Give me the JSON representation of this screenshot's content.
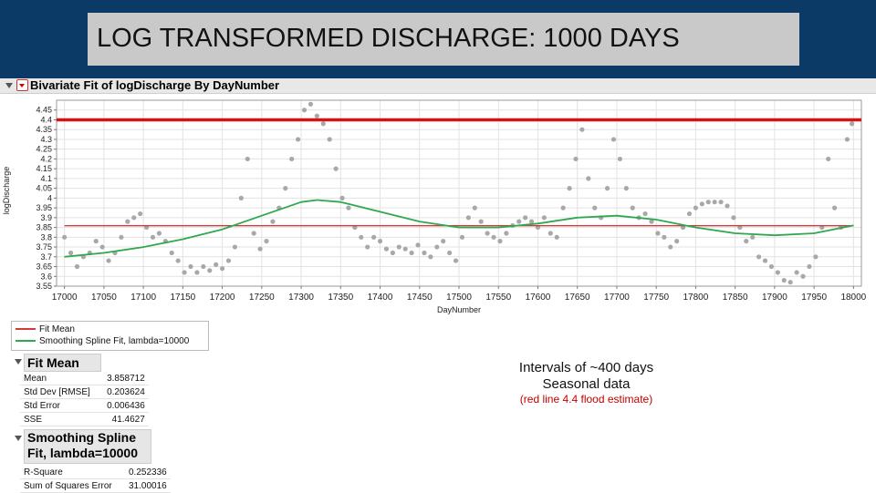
{
  "slide_title": "LOG TRANSFORMED DISCHARGE: 1000 DAYS",
  "report_title": "Bivariate Fit of logDischarge By DayNumber",
  "colors": {
    "title_band": "#0b3a66",
    "fit_mean": "#d33a3a",
    "spline": "#2fa84f",
    "flood_line": "#d41414",
    "points": "#a8a8a8",
    "annotation_red": "#c00000"
  },
  "icons": [
    "disclosure-triangle-icon",
    "red-triangle-menu-icon"
  ],
  "chart_data": {
    "type": "scatter",
    "xlabel": "DayNumber",
    "ylabel": "logDischarge",
    "xlim": [
      16990,
      18010
    ],
    "ylim": [
      3.55,
      4.5
    ],
    "x_ticks": [
      "17000",
      "17050",
      "17100",
      "17150",
      "17200",
      "17250",
      "17300",
      "17350",
      "17400",
      "17450",
      "17500",
      "17550",
      "17600",
      "17650",
      "17700",
      "17750",
      "17800",
      "17850",
      "17900",
      "17950",
      "18000"
    ],
    "y_ticks": [
      "3.55",
      "3.6",
      "3.65",
      "3.7",
      "3.75",
      "3.8",
      "3.85",
      "3.9",
      "3.95",
      "4",
      "4.05",
      "4.1",
      "4.15",
      "4.2",
      "4.25",
      "4.3",
      "4.35",
      "4.4",
      "4.45"
    ],
    "grid": true,
    "observations": {
      "x": [
        17000,
        17008,
        17016,
        17024,
        17032,
        17040,
        17048,
        17056,
        17064,
        17072,
        17080,
        17088,
        17096,
        17104,
        17112,
        17120,
        17128,
        17136,
        17144,
        17152,
        17160,
        17168,
        17176,
        17184,
        17192,
        17200,
        17208,
        17216,
        17224,
        17232,
        17240,
        17248,
        17256,
        17264,
        17272,
        17280,
        17288,
        17296,
        17304,
        17312,
        17320,
        17328,
        17336,
        17344,
        17352,
        17360,
        17368,
        17376,
        17384,
        17392,
        17400,
        17408,
        17416,
        17424,
        17432,
        17440,
        17448,
        17456,
        17464,
        17472,
        17480,
        17488,
        17496,
        17504,
        17512,
        17520,
        17528,
        17536,
        17544,
        17552,
        17560,
        17568,
        17576,
        17584,
        17592,
        17600,
        17608,
        17616,
        17624,
        17632,
        17640,
        17648,
        17656,
        17664,
        17672,
        17680,
        17688,
        17696,
        17704,
        17712,
        17720,
        17728,
        17736,
        17744,
        17752,
        17760,
        17768,
        17776,
        17784,
        17792,
        17800,
        17808,
        17816,
        17824,
        17832,
        17840,
        17848,
        17856,
        17864,
        17872,
        17880,
        17888,
        17896,
        17904,
        17912,
        17920,
        17928,
        17936,
        17944,
        17952,
        17960,
        17968,
        17976,
        17984,
        17992,
        17998
      ],
      "y": [
        3.8,
        3.72,
        3.65,
        3.7,
        3.72,
        3.78,
        3.75,
        3.68,
        3.72,
        3.8,
        3.88,
        3.9,
        3.92,
        3.85,
        3.8,
        3.82,
        3.78,
        3.72,
        3.68,
        3.62,
        3.65,
        3.62,
        3.65,
        3.63,
        3.66,
        3.64,
        3.68,
        3.75,
        4.0,
        4.2,
        3.82,
        3.74,
        3.78,
        3.88,
        3.95,
        4.05,
        4.2,
        4.3,
        4.45,
        4.48,
        4.42,
        4.38,
        4.3,
        4.15,
        4.0,
        3.95,
        3.85,
        3.8,
        3.75,
        3.8,
        3.78,
        3.74,
        3.72,
        3.75,
        3.74,
        3.72,
        3.76,
        3.72,
        3.7,
        3.75,
        3.78,
        3.72,
        3.68,
        3.8,
        3.9,
        3.95,
        3.88,
        3.82,
        3.8,
        3.78,
        3.82,
        3.86,
        3.88,
        3.9,
        3.88,
        3.85,
        3.9,
        3.82,
        3.8,
        3.95,
        4.05,
        4.2,
        4.35,
        4.1,
        3.95,
        3.9,
        4.05,
        4.3,
        4.2,
        4.05,
        3.95,
        3.9,
        3.92,
        3.88,
        3.82,
        3.8,
        3.75,
        3.78,
        3.85,
        3.92,
        3.95,
        3.97,
        3.98,
        3.98,
        3.98,
        3.96,
        3.9,
        3.85,
        3.78,
        3.8,
        3.7,
        3.68,
        3.65,
        3.62,
        3.58,
        3.57,
        3.62,
        3.6,
        3.65,
        3.7,
        3.85,
        4.2,
        3.95,
        3.85,
        4.3,
        4.38
      ]
    },
    "fit_mean": {
      "name": "Fit Mean",
      "y": 3.858712
    },
    "flood_line": {
      "y": 4.4
    },
    "spline": {
      "name": "Smoothing Spline Fit, lambda=10000",
      "x": [
        17000,
        17050,
        17100,
        17150,
        17200,
        17250,
        17300,
        17320,
        17350,
        17400,
        17450,
        17500,
        17550,
        17600,
        17650,
        17700,
        17750,
        17800,
        17850,
        17900,
        17950,
        18000
      ],
      "y": [
        3.7,
        3.72,
        3.75,
        3.79,
        3.84,
        3.91,
        3.98,
        3.99,
        3.98,
        3.93,
        3.88,
        3.85,
        3.85,
        3.87,
        3.9,
        3.91,
        3.89,
        3.85,
        3.82,
        3.81,
        3.82,
        3.86
      ]
    }
  },
  "legend": {
    "fit_mean_label": "Fit Mean",
    "spline_label": "Smoothing Spline Fit, lambda=10000"
  },
  "fit_mean_section": {
    "title": "Fit Mean",
    "rows": [
      {
        "label": "Mean",
        "value": "3.858712"
      },
      {
        "label": "Std Dev [RMSE]",
        "value": "0.203624"
      },
      {
        "label": "Std Error",
        "value": "0.006436"
      },
      {
        "label": "SSE",
        "value": "41.4627"
      }
    ]
  },
  "spline_section": {
    "title_line1": "Smoothing Spline",
    "title_line2": "Fit, lambda=10000",
    "rows": [
      {
        "label": "R-Square",
        "value": "0.252336"
      },
      {
        "label": "Sum of Squares Error",
        "value": "31.00016"
      }
    ]
  },
  "annotation": {
    "line1": "Intervals of ~400 days",
    "line2": "Seasonal data",
    "line3": "(red line 4.4 flood estimate)"
  }
}
